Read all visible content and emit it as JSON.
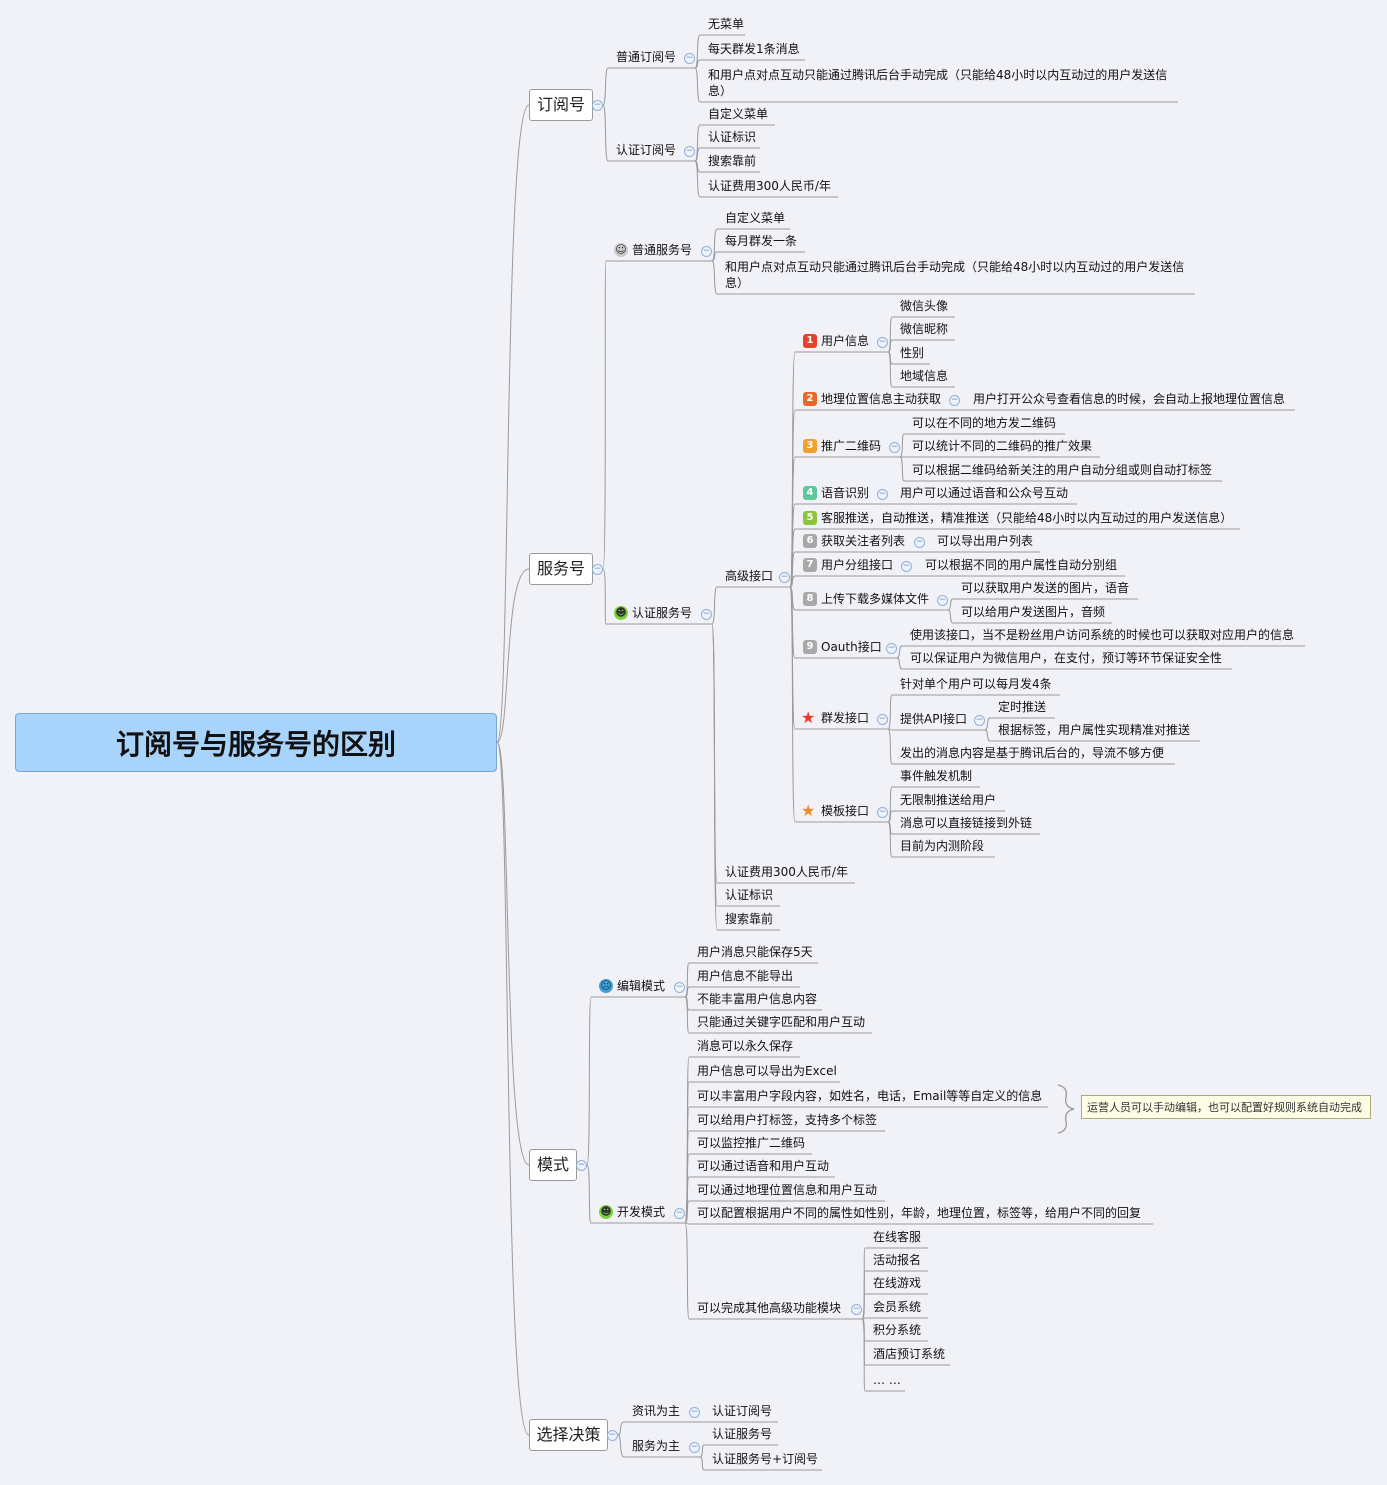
{
  "title": "订阅号与服务号的区别",
  "subscription": {
    "label": "订阅号",
    "normal": {
      "label": "普通订阅号",
      "items": [
        "无菜单",
        "每天群发1条消息",
        "和用户点对点互动只能通过腾讯后台手动完成（只能给48小时以内互动过的用户发送信息）"
      ]
    },
    "certified": {
      "label": "认证订阅号",
      "items": [
        "自定义菜单",
        "认证标识",
        "搜索靠前",
        "认证费用300人民币/年"
      ]
    }
  },
  "service": {
    "label": "服务号",
    "normal": {
      "label": "普通服务号",
      "icon": "neutral-face-icon",
      "icon_color": "#c9c9c9",
      "items": [
        "自定义菜单",
        "每月群发一条",
        "和用户点对点互动只能通过腾讯后台手动完成（只能给48小时以内互动过的用户发送信息）"
      ]
    },
    "certified": {
      "label": "认证服务号",
      "icon": "smiley-icon",
      "icon_color": "#7cd23c",
      "advanced": {
        "label": "高级接口",
        "items": [
          {
            "badge": "1",
            "icon": "number-1-badge-icon",
            "color": "#e2432a",
            "label": "用户信息",
            "children": [
              "微信头像",
              "微信昵称",
              "性别",
              "地域信息"
            ]
          },
          {
            "badge": "2",
            "icon": "number-2-badge-icon",
            "color": "#e8682a",
            "label": "地理位置信息主动获取",
            "children": [
              "用户打开公众号查看信息的时候，会自动上报地理位置信息"
            ]
          },
          {
            "badge": "3",
            "icon": "number-3-badge-icon",
            "color": "#f0a030",
            "label": "推广二维码",
            "children": [
              "可以在不同的地方发二维码",
              "可以统计不同的二维码的推广效果",
              "可以根据二维码给新关注的用户自动分组或则自动打标签"
            ]
          },
          {
            "badge": "4",
            "icon": "number-4-badge-icon",
            "color": "#5cc89c",
            "label": "语音识别",
            "children": [
              "用户可以通过语音和公众号互动"
            ]
          },
          {
            "badge": "5",
            "icon": "number-5-badge-icon",
            "color": "#8cc43c",
            "label": "客服推送，自动推送，精准推送（只能给48小时以内互动过的用户发送信息）",
            "children": []
          },
          {
            "badge": "6",
            "icon": "number-6-badge-icon",
            "color": "#a8a8a8",
            "label": "获取关注者列表",
            "children": [
              "可以导出用户列表"
            ]
          },
          {
            "badge": "7",
            "icon": "number-7-badge-icon",
            "color": "#a8a8a8",
            "label": "用户分组接口",
            "children": [
              "可以根据不同的用户属性自动分别组"
            ]
          },
          {
            "badge": "8",
            "icon": "number-8-badge-icon",
            "color": "#a8a8a8",
            "label": "上传下载多媒体文件",
            "children": [
              "可以获取用户发送的图片，语音",
              "可以给用户发送图片，音频"
            ]
          },
          {
            "badge": "9",
            "icon": "number-9-badge-icon",
            "color": "#a8a8a8",
            "label": "Oauth接口",
            "children": [
              "使用该接口，当不是粉丝用户访问系统的时候也可以获取对应用户的信息",
              "可以保证用户为微信用户，在支付，预订等环节保证安全性"
            ]
          },
          {
            "icon": "red-star-icon",
            "color": "#e8382a",
            "label": "群发接口",
            "children": [
              "针对单个用户可以每月发4条",
              "提供API接口",
              "发出的消息内容是基于腾讯后台的，导流不够方便"
            ],
            "api_children": [
              "定时推送",
              "根据标签，用户属性实现精准对推送"
            ]
          },
          {
            "icon": "orange-star-icon",
            "color": "#f08a24",
            "label": "模板接口",
            "children": [
              "事件触发机制",
              "无限制推送给用户",
              "消息可以直接链接到外链",
              "目前为内测阶段"
            ]
          }
        ]
      },
      "items": [
        "认证费用300人民币/年",
        "认证标识",
        "搜索靠前"
      ]
    }
  },
  "mode": {
    "label": "模式",
    "edit": {
      "label": "编辑模式",
      "icon": "crying-face-icon",
      "icon_color": "#3aa0e0",
      "items": [
        "用户消息只能保存5天",
        "用户信息不能导出",
        "不能丰富用户信息内容",
        "只能通过关键字匹配和用户互动"
      ]
    },
    "dev": {
      "label": "开发模式",
      "icon": "smiley-icon",
      "icon_color": "#7cd23c",
      "items": [
        "消息可以永久保存",
        "用户信息可以导出为Excel",
        "可以丰富用户字段内容，如姓名，电话，Email等等自定义的信息",
        "可以给用户打标签，支持多个标签",
        "可以监控推广二维码",
        "可以通过语音和用户互动",
        "可以通过地理位置信息和用户互动",
        "可以配置根据用户不同的属性如性别，年龄，地理位置，标签等，给用户不同的回复"
      ],
      "modules": {
        "label": "可以完成其他高级功能模块",
        "items": [
          "在线客服",
          "活动报名",
          "在线游戏",
          "会员系统",
          "积分系统",
          "酒店预订系统",
          "… …"
        ]
      }
    },
    "callout": "运营人员可以手动编辑，也可以配置好规则系统自动完成"
  },
  "decision": {
    "label": "选择决策",
    "news": {
      "label": "资讯为主",
      "items": [
        "认证订阅号"
      ]
    },
    "service": {
      "label": "服务为主",
      "items": [
        "认证服务号",
        "认证服务号+订阅号"
      ]
    }
  },
  "colors": {
    "root_fill": "#a8d4fb",
    "line": "#9a9a9a",
    "background": "#f1f2f8"
  }
}
